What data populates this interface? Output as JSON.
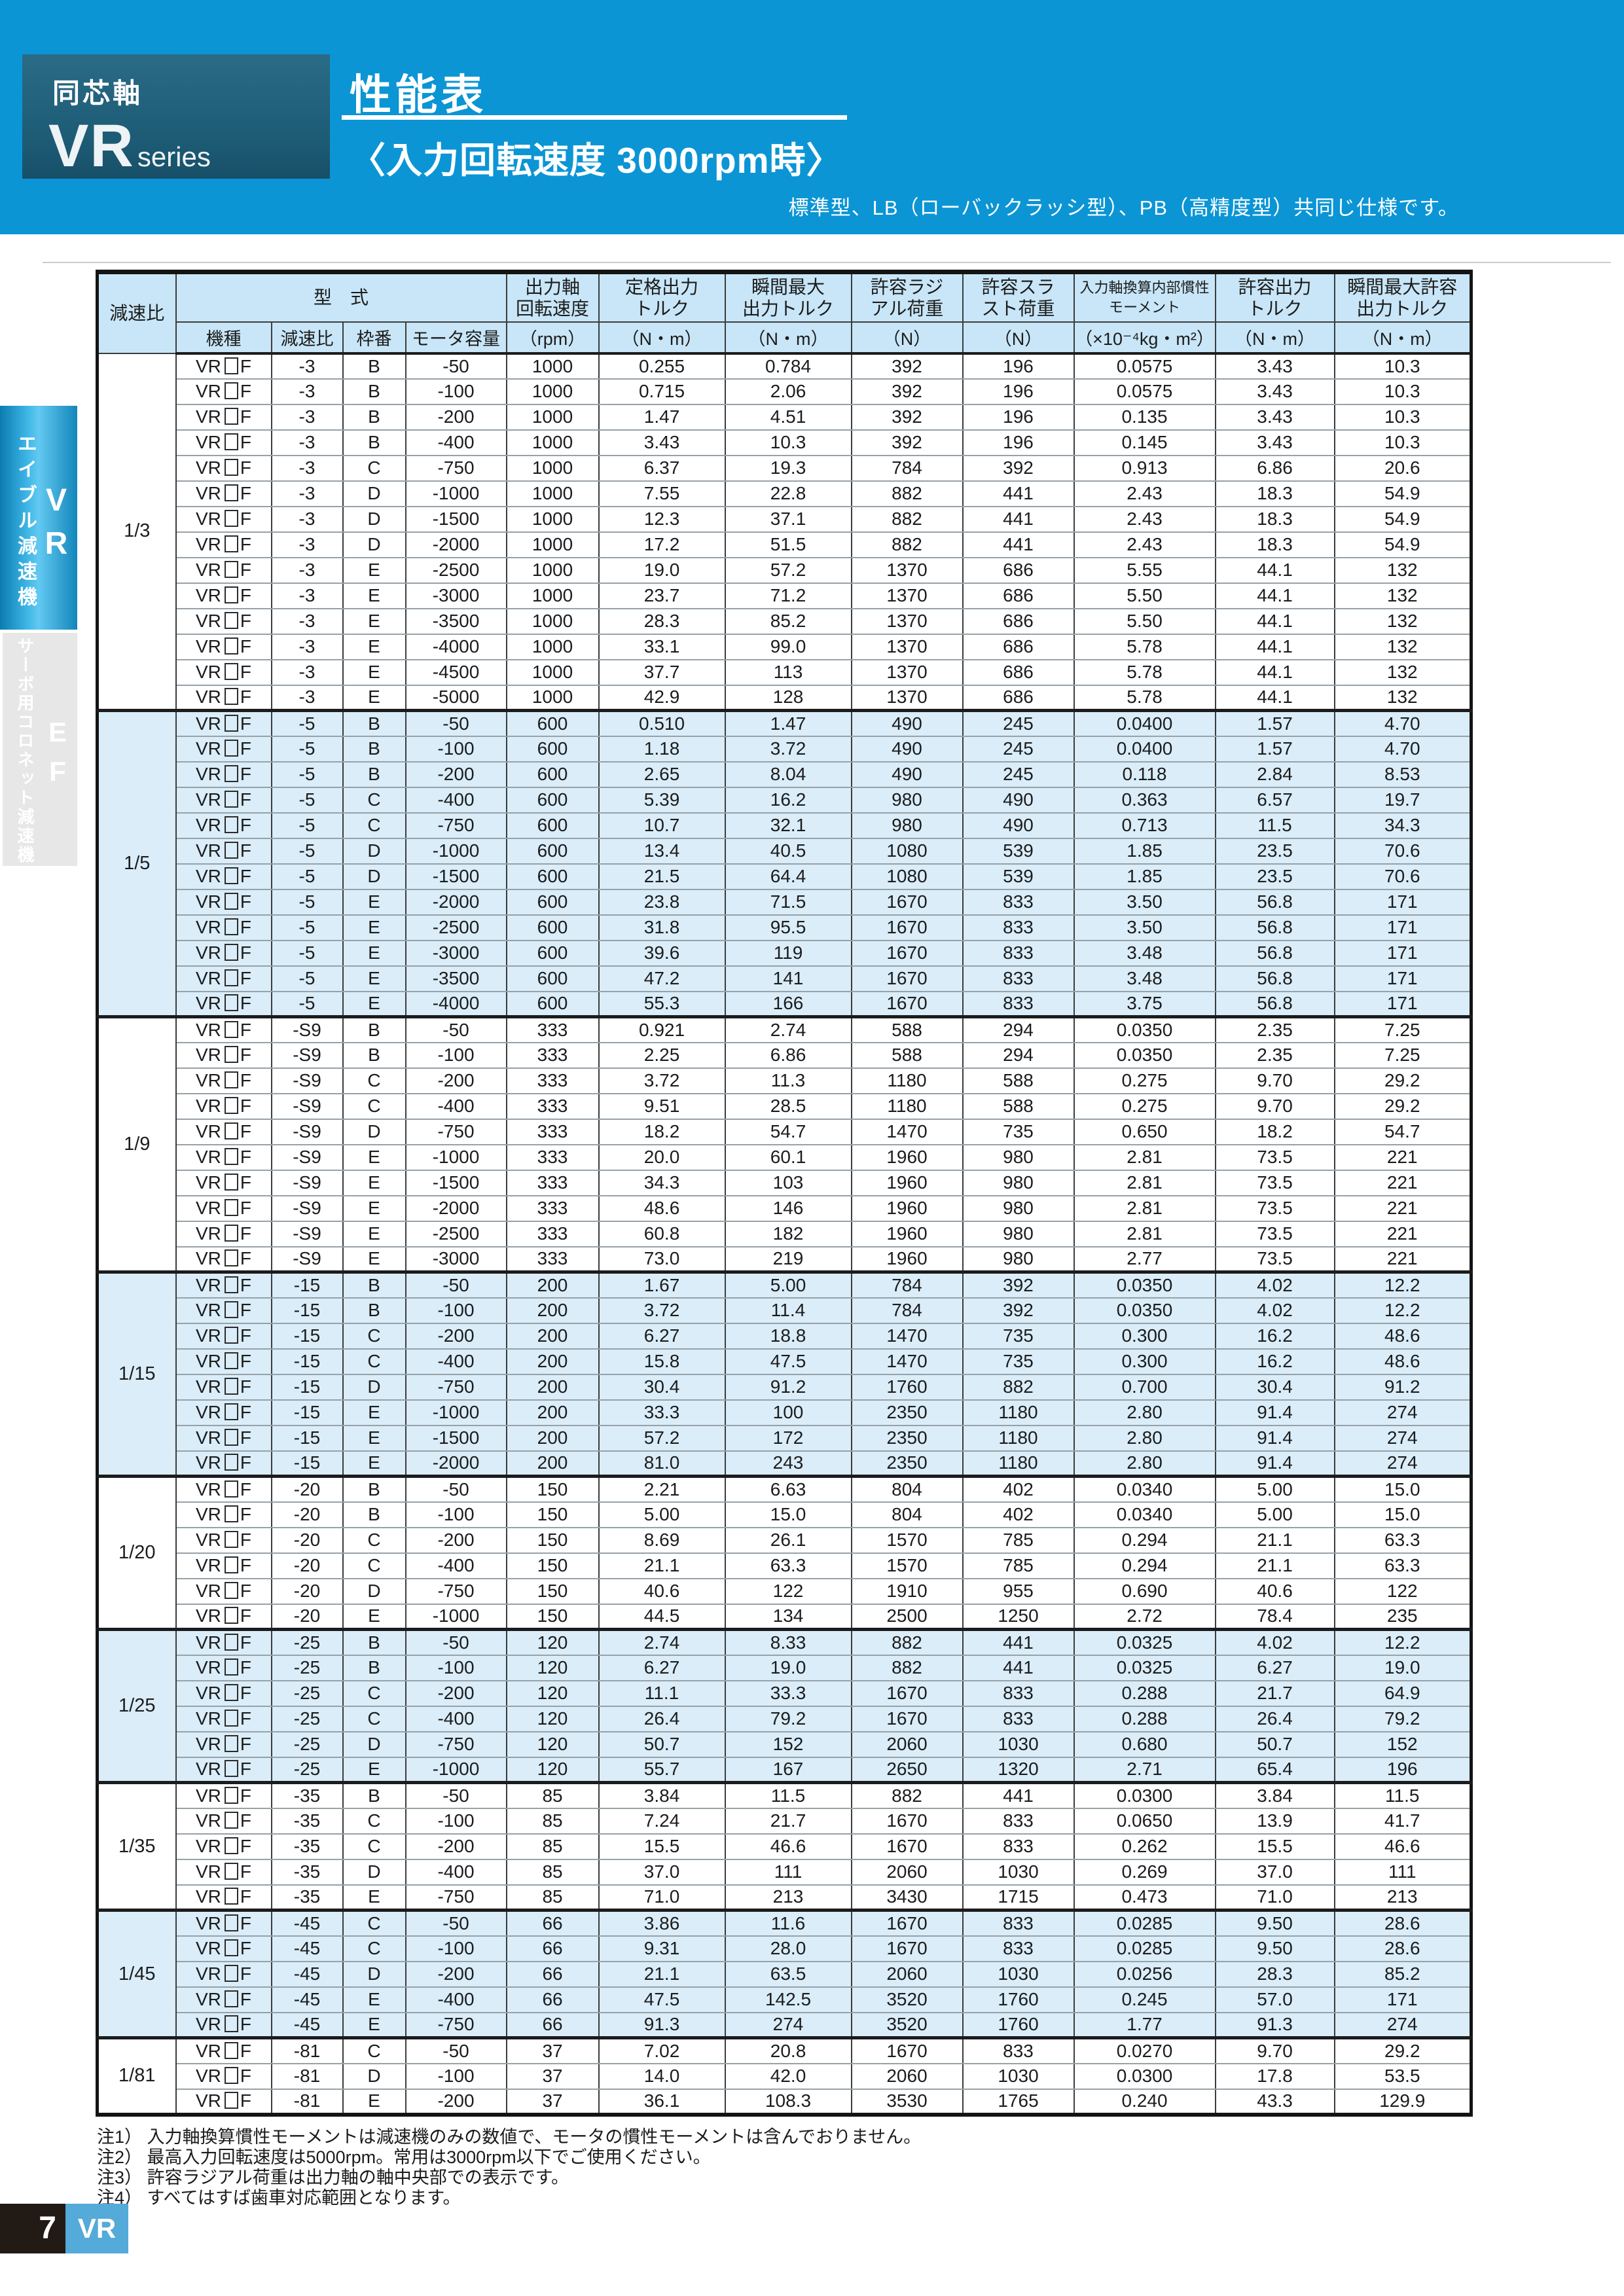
{
  "colors": {
    "banner_blue": "#0b95d5",
    "badge_dark": "#1d5b75",
    "header_bg": "#c8e6f7",
    "tint_bg": "#daedf9",
    "tab_gray": "#e7e7e7",
    "footer_black": "#221a14",
    "footer_blue": "#54aad8"
  },
  "banner": {
    "series_category": "同芯軸",
    "series_name": "VR",
    "series_suffix": "series",
    "title": "性能表",
    "subtitle": "〈入力回転速度 3000rpm時〉",
    "note": "標準型、LB（ローバックラッシ型）、PB（高精度型）共同じ仕様です。"
  },
  "sidebar": {
    "tab_vr": {
      "label": "エイブル減速機",
      "code_letters": [
        "V",
        "R"
      ]
    },
    "tab_ef": {
      "label": "サーボ用コロネット減速機",
      "code_letters": [
        "E",
        "F"
      ]
    }
  },
  "table": {
    "header": {
      "ratio": "減速比",
      "model_group": "型　式",
      "model_cols": [
        "機種",
        "減速比",
        "枠番",
        "モータ容量"
      ],
      "value_cols": [
        {
          "line1": "出力軸",
          "line2": "回転速度",
          "unit": "（rpm）"
        },
        {
          "line1": "定格出力",
          "line2": "トルク",
          "unit": "（N・m）"
        },
        {
          "line1": "瞬間最大",
          "line2": "出力トルク",
          "unit": "（N・m）"
        },
        {
          "line1": "許容ラジ",
          "line2": "アル荷重",
          "unit": "（N）"
        },
        {
          "line1": "許容スラ",
          "line2": "スト荷重",
          "unit": "（N）"
        },
        {
          "line1": "入力軸換算内部慣性",
          "line2": "モーメント",
          "unit": "（×10⁻⁴kg・m²）"
        },
        {
          "line1": "許容出力",
          "line2": "トルク",
          "unit": "（N・m）"
        },
        {
          "line1": "瞬間最大許容",
          "line2": "出力トルク",
          "unit": "（N・m）"
        }
      ]
    },
    "model_prefix": "VR",
    "model_suffix": "F",
    "groups": [
      {
        "ratio": "1/3",
        "rows": [
          [
            "-3",
            "B",
            "-50",
            "1000",
            "0.255",
            "0.784",
            "392",
            "196",
            "0.0575",
            "3.43",
            "10.3"
          ],
          [
            "-3",
            "B",
            "-100",
            "1000",
            "0.715",
            "2.06",
            "392",
            "196",
            "0.0575",
            "3.43",
            "10.3"
          ],
          [
            "-3",
            "B",
            "-200",
            "1000",
            "1.47",
            "4.51",
            "392",
            "196",
            "0.135",
            "3.43",
            "10.3"
          ],
          [
            "-3",
            "B",
            "-400",
            "1000",
            "3.43",
            "10.3",
            "392",
            "196",
            "0.145",
            "3.43",
            "10.3"
          ],
          [
            "-3",
            "C",
            "-750",
            "1000",
            "6.37",
            "19.3",
            "784",
            "392",
            "0.913",
            "6.86",
            "20.6"
          ],
          [
            "-3",
            "D",
            "-1000",
            "1000",
            "7.55",
            "22.8",
            "882",
            "441",
            "2.43",
            "18.3",
            "54.9"
          ],
          [
            "-3",
            "D",
            "-1500",
            "1000",
            "12.3",
            "37.1",
            "882",
            "441",
            "2.43",
            "18.3",
            "54.9"
          ],
          [
            "-3",
            "D",
            "-2000",
            "1000",
            "17.2",
            "51.5",
            "882",
            "441",
            "2.43",
            "18.3",
            "54.9"
          ],
          [
            "-3",
            "E",
            "-2500",
            "1000",
            "19.0",
            "57.2",
            "1370",
            "686",
            "5.55",
            "44.1",
            "132"
          ],
          [
            "-3",
            "E",
            "-3000",
            "1000",
            "23.7",
            "71.2",
            "1370",
            "686",
            "5.50",
            "44.1",
            "132"
          ],
          [
            "-3",
            "E",
            "-3500",
            "1000",
            "28.3",
            "85.2",
            "1370",
            "686",
            "5.50",
            "44.1",
            "132"
          ],
          [
            "-3",
            "E",
            "-4000",
            "1000",
            "33.1",
            "99.0",
            "1370",
            "686",
            "5.78",
            "44.1",
            "132"
          ],
          [
            "-3",
            "E",
            "-4500",
            "1000",
            "37.7",
            "113",
            "1370",
            "686",
            "5.78",
            "44.1",
            "132"
          ],
          [
            "-3",
            "E",
            "-5000",
            "1000",
            "42.9",
            "128",
            "1370",
            "686",
            "5.78",
            "44.1",
            "132"
          ]
        ]
      },
      {
        "ratio": "1/5",
        "rows": [
          [
            "-5",
            "B",
            "-50",
            "600",
            "0.510",
            "1.47",
            "490",
            "245",
            "0.0400",
            "1.57",
            "4.70"
          ],
          [
            "-5",
            "B",
            "-100",
            "600",
            "1.18",
            "3.72",
            "490",
            "245",
            "0.0400",
            "1.57",
            "4.70"
          ],
          [
            "-5",
            "B",
            "-200",
            "600",
            "2.65",
            "8.04",
            "490",
            "245",
            "0.118",
            "2.84",
            "8.53"
          ],
          [
            "-5",
            "C",
            "-400",
            "600",
            "5.39",
            "16.2",
            "980",
            "490",
            "0.363",
            "6.57",
            "19.7"
          ],
          [
            "-5",
            "C",
            "-750",
            "600",
            "10.7",
            "32.1",
            "980",
            "490",
            "0.713",
            "11.5",
            "34.3"
          ],
          [
            "-5",
            "D",
            "-1000",
            "600",
            "13.4",
            "40.5",
            "1080",
            "539",
            "1.85",
            "23.5",
            "70.6"
          ],
          [
            "-5",
            "D",
            "-1500",
            "600",
            "21.5",
            "64.4",
            "1080",
            "539",
            "1.85",
            "23.5",
            "70.6"
          ],
          [
            "-5",
            "E",
            "-2000",
            "600",
            "23.8",
            "71.5",
            "1670",
            "833",
            "3.50",
            "56.8",
            "171"
          ],
          [
            "-5",
            "E",
            "-2500",
            "600",
            "31.8",
            "95.5",
            "1670",
            "833",
            "3.50",
            "56.8",
            "171"
          ],
          [
            "-5",
            "E",
            "-3000",
            "600",
            "39.6",
            "119",
            "1670",
            "833",
            "3.48",
            "56.8",
            "171"
          ],
          [
            "-5",
            "E",
            "-3500",
            "600",
            "47.2",
            "141",
            "1670",
            "833",
            "3.48",
            "56.8",
            "171"
          ],
          [
            "-5",
            "E",
            "-4000",
            "600",
            "55.3",
            "166",
            "1670",
            "833",
            "3.75",
            "56.8",
            "171"
          ]
        ]
      },
      {
        "ratio": "1/9",
        "rows": [
          [
            "-S9",
            "B",
            "-50",
            "333",
            "0.921",
            "2.74",
            "588",
            "294",
            "0.0350",
            "2.35",
            "7.25"
          ],
          [
            "-S9",
            "B",
            "-100",
            "333",
            "2.25",
            "6.86",
            "588",
            "294",
            "0.0350",
            "2.35",
            "7.25"
          ],
          [
            "-S9",
            "C",
            "-200",
            "333",
            "3.72",
            "11.3",
            "1180",
            "588",
            "0.275",
            "9.70",
            "29.2"
          ],
          [
            "-S9",
            "C",
            "-400",
            "333",
            "9.51",
            "28.5",
            "1180",
            "588",
            "0.275",
            "9.70",
            "29.2"
          ],
          [
            "-S9",
            "D",
            "-750",
            "333",
            "18.2",
            "54.7",
            "1470",
            "735",
            "0.650",
            "18.2",
            "54.7"
          ],
          [
            "-S9",
            "E",
            "-1000",
            "333",
            "20.0",
            "60.1",
            "1960",
            "980",
            "2.81",
            "73.5",
            "221"
          ],
          [
            "-S9",
            "E",
            "-1500",
            "333",
            "34.3",
            "103",
            "1960",
            "980",
            "2.81",
            "73.5",
            "221"
          ],
          [
            "-S9",
            "E",
            "-2000",
            "333",
            "48.6",
            "146",
            "1960",
            "980",
            "2.81",
            "73.5",
            "221"
          ],
          [
            "-S9",
            "E",
            "-2500",
            "333",
            "60.8",
            "182",
            "1960",
            "980",
            "2.81",
            "73.5",
            "221"
          ],
          [
            "-S9",
            "E",
            "-3000",
            "333",
            "73.0",
            "219",
            "1960",
            "980",
            "2.77",
            "73.5",
            "221"
          ]
        ]
      },
      {
        "ratio": "1/15",
        "rows": [
          [
            "-15",
            "B",
            "-50",
            "200",
            "1.67",
            "5.00",
            "784",
            "392",
            "0.0350",
            "4.02",
            "12.2"
          ],
          [
            "-15",
            "B",
            "-100",
            "200",
            "3.72",
            "11.4",
            "784",
            "392",
            "0.0350",
            "4.02",
            "12.2"
          ],
          [
            "-15",
            "C",
            "-200",
            "200",
            "6.27",
            "18.8",
            "1470",
            "735",
            "0.300",
            "16.2",
            "48.6"
          ],
          [
            "-15",
            "C",
            "-400",
            "200",
            "15.8",
            "47.5",
            "1470",
            "735",
            "0.300",
            "16.2",
            "48.6"
          ],
          [
            "-15",
            "D",
            "-750",
            "200",
            "30.4",
            "91.2",
            "1760",
            "882",
            "0.700",
            "30.4",
            "91.2"
          ],
          [
            "-15",
            "E",
            "-1000",
            "200",
            "33.3",
            "100",
            "2350",
            "1180",
            "2.80",
            "91.4",
            "274"
          ],
          [
            "-15",
            "E",
            "-1500",
            "200",
            "57.2",
            "172",
            "2350",
            "1180",
            "2.80",
            "91.4",
            "274"
          ],
          [
            "-15",
            "E",
            "-2000",
            "200",
            "81.0",
            "243",
            "2350",
            "1180",
            "2.80",
            "91.4",
            "274"
          ]
        ]
      },
      {
        "ratio": "1/20",
        "rows": [
          [
            "-20",
            "B",
            "-50",
            "150",
            "2.21",
            "6.63",
            "804",
            "402",
            "0.0340",
            "5.00",
            "15.0"
          ],
          [
            "-20",
            "B",
            "-100",
            "150",
            "5.00",
            "15.0",
            "804",
            "402",
            "0.0340",
            "5.00",
            "15.0"
          ],
          [
            "-20",
            "C",
            "-200",
            "150",
            "8.69",
            "26.1",
            "1570",
            "785",
            "0.294",
            "21.1",
            "63.3"
          ],
          [
            "-20",
            "C",
            "-400",
            "150",
            "21.1",
            "63.3",
            "1570",
            "785",
            "0.294",
            "21.1",
            "63.3"
          ],
          [
            "-20",
            "D",
            "-750",
            "150",
            "40.6",
            "122",
            "1910",
            "955",
            "0.690",
            "40.6",
            "122"
          ],
          [
            "-20",
            "E",
            "-1000",
            "150",
            "44.5",
            "134",
            "2500",
            "1250",
            "2.72",
            "78.4",
            "235"
          ]
        ]
      },
      {
        "ratio": "1/25",
        "rows": [
          [
            "-25",
            "B",
            "-50",
            "120",
            "2.74",
            "8.33",
            "882",
            "441",
            "0.0325",
            "4.02",
            "12.2"
          ],
          [
            "-25",
            "B",
            "-100",
            "120",
            "6.27",
            "19.0",
            "882",
            "441",
            "0.0325",
            "6.27",
            "19.0"
          ],
          [
            "-25",
            "C",
            "-200",
            "120",
            "11.1",
            "33.3",
            "1670",
            "833",
            "0.288",
            "21.7",
            "64.9"
          ],
          [
            "-25",
            "C",
            "-400",
            "120",
            "26.4",
            "79.2",
            "1670",
            "833",
            "0.288",
            "26.4",
            "79.2"
          ],
          [
            "-25",
            "D",
            "-750",
            "120",
            "50.7",
            "152",
            "2060",
            "1030",
            "0.680",
            "50.7",
            "152"
          ],
          [
            "-25",
            "E",
            "-1000",
            "120",
            "55.7",
            "167",
            "2650",
            "1320",
            "2.71",
            "65.4",
            "196"
          ]
        ]
      },
      {
        "ratio": "1/35",
        "rows": [
          [
            "-35",
            "B",
            "-50",
            "85",
            "3.84",
            "11.5",
            "882",
            "441",
            "0.0300",
            "3.84",
            "11.5"
          ],
          [
            "-35",
            "C",
            "-100",
            "85",
            "7.24",
            "21.7",
            "1670",
            "833",
            "0.0650",
            "13.9",
            "41.7"
          ],
          [
            "-35",
            "C",
            "-200",
            "85",
            "15.5",
            "46.6",
            "1670",
            "833",
            "0.262",
            "15.5",
            "46.6"
          ],
          [
            "-35",
            "D",
            "-400",
            "85",
            "37.0",
            "111",
            "2060",
            "1030",
            "0.269",
            "37.0",
            "111"
          ],
          [
            "-35",
            "E",
            "-750",
            "85",
            "71.0",
            "213",
            "3430",
            "1715",
            "0.473",
            "71.0",
            "213"
          ]
        ]
      },
      {
        "ratio": "1/45",
        "rows": [
          [
            "-45",
            "C",
            "-50",
            "66",
            "3.86",
            "11.6",
            "1670",
            "833",
            "0.0285",
            "9.50",
            "28.6"
          ],
          [
            "-45",
            "C",
            "-100",
            "66",
            "9.31",
            "28.0",
            "1670",
            "833",
            "0.0285",
            "9.50",
            "28.6"
          ],
          [
            "-45",
            "D",
            "-200",
            "66",
            "21.1",
            "63.5",
            "2060",
            "1030",
            "0.0256",
            "28.3",
            "85.2"
          ],
          [
            "-45",
            "E",
            "-400",
            "66",
            "47.5",
            "142.5",
            "3520",
            "1760",
            "0.245",
            "57.0",
            "171"
          ],
          [
            "-45",
            "E",
            "-750",
            "66",
            "91.3",
            "274",
            "3520",
            "1760",
            "1.77",
            "91.3",
            "274"
          ]
        ]
      },
      {
        "ratio": "1/81",
        "rows": [
          [
            "-81",
            "C",
            "-50",
            "37",
            "7.02",
            "20.8",
            "1670",
            "833",
            "0.0270",
            "9.70",
            "29.2"
          ],
          [
            "-81",
            "D",
            "-100",
            "37",
            "14.0",
            "42.0",
            "2060",
            "1030",
            "0.0300",
            "17.8",
            "53.5"
          ],
          [
            "-81",
            "E",
            "-200",
            "37",
            "36.1",
            "108.3",
            "3530",
            "1765",
            "0.240",
            "43.3",
            "129.9"
          ]
        ]
      }
    ]
  },
  "notes": [
    "注1） 入力軸換算慣性モーメントは減速機のみの数値で、モータの慣性モーメントは含んでおりません。",
    "注2） 最高入力回転速度は5000rpm。常用は3000rpm以下でご使用ください。",
    "注3） 許容ラジアル荷重は出力軸の軸中央部での表示です。",
    "注4） すべてはすば歯車対応範囲となります。"
  ],
  "footer": {
    "page": "7",
    "code": "VR"
  }
}
